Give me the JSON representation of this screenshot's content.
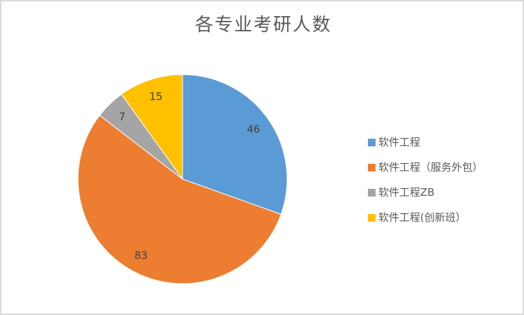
{
  "styles": {
    "background": "#ffffff",
    "frame_border_color": "#d9d9d9",
    "title_color": "#595959",
    "label_color": "#404040",
    "legend_text_color": "#595959"
  },
  "chart_data": {
    "type": "pie",
    "title": "各专业考研人数",
    "categories": [
      "软件工程",
      "软件工程（服务外包）",
      "软件工程ZB",
      "软件工程(创新班）"
    ],
    "values": [
      46,
      83,
      7,
      15
    ],
    "colors": [
      "#5b9bd5",
      "#ed7d31",
      "#a5a5a5",
      "#ffc000"
    ],
    "data_labels": [
      "46",
      "83",
      "7",
      "15"
    ],
    "start_angle_deg": 0,
    "direction": "clockwise",
    "legend_position": "right",
    "slice_border_color": "#ffffff"
  }
}
